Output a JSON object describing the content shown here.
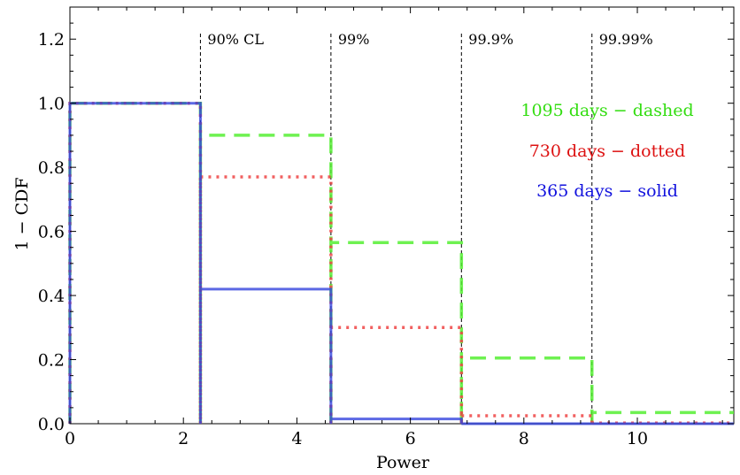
{
  "chart_data": {
    "type": "line",
    "title": "",
    "xlabel": "Power",
    "ylabel": "1 − CDF",
    "xlim": [
      0,
      11.7
    ],
    "ylim": [
      0,
      1.3
    ],
    "xticks": [
      0,
      2,
      4,
      6,
      8,
      10
    ],
    "yticks": [
      0.0,
      0.2,
      0.4,
      0.6,
      0.8,
      1.0,
      1.2
    ],
    "ytick_labels": [
      "0.0",
      "0.2",
      "0.4",
      "0.6",
      "0.8",
      "1.0",
      "1.2"
    ],
    "grid": false,
    "confidence_levels": [
      {
        "x": 2.3,
        "label": "90% CL"
      },
      {
        "x": 4.6,
        "label": "99%"
      },
      {
        "x": 6.9,
        "label": "99.9%"
      },
      {
        "x": 9.2,
        "label": "99.99%"
      }
    ],
    "series": [
      {
        "name": "1095 days − dashed",
        "color": "#55ee33",
        "style": "dashed",
        "steps": [
          [
            0,
            1.0
          ],
          [
            2.3,
            0.9
          ],
          [
            4.6,
            0.565
          ],
          [
            6.9,
            0.205
          ],
          [
            9.2,
            0.035
          ]
        ]
      },
      {
        "name": "730 days − dotted",
        "color": "#ee4444",
        "style": "dotted",
        "steps": [
          [
            0,
            1.0
          ],
          [
            2.3,
            0.77
          ],
          [
            4.6,
            0.3
          ],
          [
            6.9,
            0.025
          ],
          [
            9.2,
            0.002
          ]
        ]
      },
      {
        "name": "365 days − solid",
        "color": "#3344dd",
        "style": "solid",
        "steps": [
          [
            0,
            1.0
          ],
          [
            2.3,
            0.42
          ],
          [
            4.6,
            0.015
          ],
          [
            6.9,
            0.0
          ],
          [
            9.2,
            0.0
          ]
        ]
      }
    ],
    "legend": {
      "placement": "right",
      "entries": [
        {
          "label": "1095 days − dashed",
          "color": "#33dd11"
        },
        {
          "label": "730 days − dotted",
          "color": "#dd1111"
        },
        {
          "label": "365 days − solid",
          "color": "#1111dd"
        }
      ]
    }
  }
}
